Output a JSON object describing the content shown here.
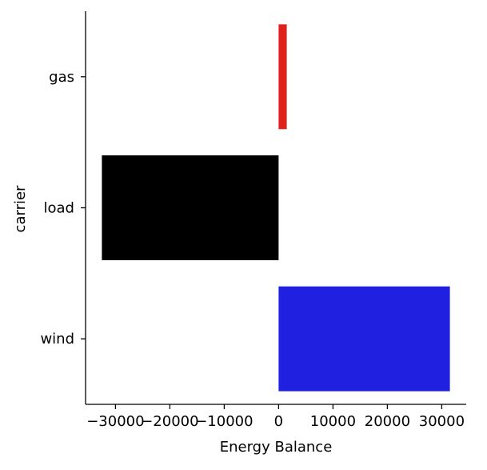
{
  "chart_data": {
    "type": "bar",
    "orientation": "horizontal",
    "title": "",
    "xlabel": "Energy Balance",
    "ylabel": "carrier",
    "categories": [
      "gas",
      "load",
      "wind"
    ],
    "values": [
      1500,
      -32500,
      31500
    ],
    "colors": [
      "#e0201c",
      "#000000",
      "#2020e0"
    ],
    "xlim": [
      -35500,
      34500
    ],
    "xticks": [
      -30000,
      -20000,
      -10000,
      0,
      10000,
      20000,
      30000
    ],
    "xtick_labels": [
      "−30000",
      "−20000",
      "−10000",
      "0",
      "10000",
      "20000",
      "30000"
    ],
    "grid": false,
    "legend": "none"
  }
}
